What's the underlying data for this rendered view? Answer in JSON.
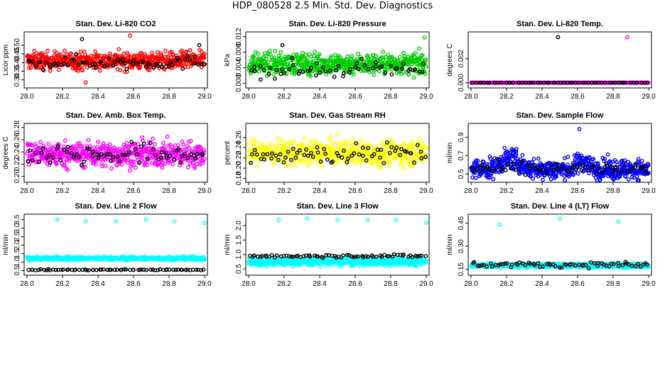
{
  "page": {
    "title": "HDP_080528  2.5 Min. Std. Dev. Diagnostics"
  },
  "colors": {
    "black": "#000000",
    "red": "#ff0000",
    "green": "#00cd00",
    "magenta": "#ff00ff",
    "yellow": "#ffff00",
    "blue": "#0000ff",
    "cyan": "#00ffff"
  },
  "chart_data": [
    {
      "type": "scatter",
      "title": "Stan. Dev. Li-820 CO2",
      "ylabel": "Licor ppm",
      "xlabel": "",
      "xlim": [
        28.0,
        29.0
      ],
      "ylim": [
        0.27,
        0.56
      ],
      "xticks": [
        "28.0",
        "28.2",
        "28.4",
        "28.6",
        "28.8",
        "29.0"
      ],
      "yticks": [
        "0.30",
        "0.35",
        "0.40",
        "0.45",
        "0.50"
      ],
      "series": [
        {
          "color": "#ff0000",
          "approx_points": 560,
          "typical_range": [
            0.32,
            0.5
          ],
          "mean": 0.41
        },
        {
          "color": "#000000",
          "approx_points": 70,
          "typical_range": [
            0.33,
            0.47
          ],
          "mean": 0.4
        }
      ],
      "outliers": [
        {
          "x": 28.31,
          "y": 0.535,
          "color": "#000000"
        },
        {
          "x": 28.58,
          "y": 0.555,
          "color": "#ff0000"
        },
        {
          "x": 28.33,
          "y": 0.285,
          "color": "#ff0000"
        },
        {
          "x": 28.97,
          "y": 0.5,
          "color": "#000000"
        }
      ]
    },
    {
      "type": "scatter",
      "title": "Stan. Dev. Li-820 Pressure",
      "ylabel": "kPa",
      "xlabel": "",
      "xlim": [
        28.0,
        29.0
      ],
      "ylim": [
        -0.0005,
        0.0125
      ],
      "xticks": [
        "28.0",
        "28.2",
        "28.4",
        "28.6",
        "28.8",
        "29.0"
      ],
      "yticks": [
        "0.000",
        "0.004",
        "0.008",
        "0.012"
      ],
      "series": [
        {
          "color": "#00cd00",
          "approx_points": 560,
          "typical_range": [
            0.0008,
            0.0105
          ],
          "mean": 0.005
        },
        {
          "color": "#000000",
          "approx_points": 60,
          "typical_range": [
            0.0002,
            0.008
          ],
          "mean": 0.0035
        }
      ],
      "outliers": [
        {
          "x": 28.99,
          "y": 0.0118,
          "color": "#00cd00"
        },
        {
          "x": 28.19,
          "y": 0.0098,
          "color": "#000000"
        }
      ]
    },
    {
      "type": "scatter",
      "title": "Stan. Dev. Li-820 Temp.",
      "ylabel": "degrees C",
      "xlabel": "",
      "xlim": [
        28.0,
        29.0
      ],
      "ylim": [
        -0.0002,
        0.004
      ],
      "xticks": [
        "28.0",
        "28.2",
        "28.4",
        "28.6",
        "28.8",
        "29.0"
      ],
      "yticks": [
        "0.000",
        "0.002"
      ],
      "series": [
        {
          "color": "#ff00ff",
          "approx_points": 400,
          "typical_range": [
            0.0,
            0.0
          ],
          "mean": 0.0
        },
        {
          "color": "#000000",
          "approx_points": 60,
          "typical_range": [
            0.0,
            0.0
          ],
          "mean": 0.0
        }
      ],
      "outliers": [
        {
          "x": 28.49,
          "y": 0.0038,
          "color": "#000000"
        },
        {
          "x": 28.88,
          "y": 0.0038,
          "color": "#ff00ff"
        }
      ]
    },
    {
      "type": "scatter",
      "title": "Stan. Dev. Amb. Box Temp.",
      "ylabel": "degrees C",
      "xlabel": "",
      "xlim": [
        28.0,
        29.0
      ],
      "ylim": [
        0.195,
        0.282
      ],
      "xticks": [
        "28.0",
        "28.2",
        "28.4",
        "28.6",
        "28.8",
        "29.0"
      ],
      "yticks": [
        "0.20",
        "0.22",
        "0.24",
        "0.26",
        "0.28"
      ],
      "series": [
        {
          "color": "#ff00ff",
          "approx_points": 560,
          "typical_range": [
            0.202,
            0.275
          ],
          "mean": 0.236
        },
        {
          "color": "#000000",
          "approx_points": 70,
          "typical_range": [
            0.205,
            0.27
          ],
          "mean": 0.236
        }
      ],
      "outliers": []
    },
    {
      "type": "scatter",
      "title": "Stan. Dev. Gas Stream RH",
      "ylabel": "percent",
      "xlabel": "",
      "xlim": [
        28.0,
        29.0
      ],
      "ylim": [
        0.178,
        0.282
      ],
      "xticks": [
        "28.0",
        "28.2",
        "28.4",
        "28.6",
        "28.8",
        "29.0"
      ],
      "yticks": [
        "0.18",
        "0.20",
        "0.22",
        "0.24",
        "0.26"
      ],
      "series": [
        {
          "color": "#ffff00",
          "approx_points": 560,
          "typical_range": [
            0.19,
            0.275
          ],
          "mean": 0.23
        },
        {
          "color": "#000000",
          "approx_points": 70,
          "typical_range": [
            0.19,
            0.265
          ],
          "mean": 0.228
        }
      ],
      "outliers": []
    },
    {
      "type": "scatter",
      "title": "Stan. Dev. Sample Flow",
      "ylabel": "ml/min",
      "xlabel": "",
      "xlim": [
        28.0,
        29.0
      ],
      "ylim": [
        0.44,
        1.02
      ],
      "xticks": [
        "28.0",
        "28.2",
        "28.4",
        "28.6",
        "28.8",
        "29.0"
      ],
      "yticks": [
        "0.5",
        "0.7",
        "0.9"
      ],
      "series": [
        {
          "color": "#0000ff",
          "approx_points": 600,
          "typical_range": [
            0.45,
            0.85
          ],
          "mean": 0.55
        },
        {
          "color": "#000000",
          "approx_points": 70,
          "typical_range": [
            0.45,
            0.7
          ],
          "mean": 0.55
        }
      ],
      "outliers": [
        {
          "x": 28.61,
          "y": 0.99,
          "color": "#0000ff"
        }
      ]
    },
    {
      "type": "scatter",
      "title": "Stan. Dev. Line 2 Flow",
      "ylabel": "ml/min",
      "xlabel": "",
      "xlim": [
        28.0,
        29.0
      ],
      "ylim": [
        0.4,
        3.65
      ],
      "xticks": [
        "28.0",
        "28.2",
        "28.4",
        "28.6",
        "28.8",
        "29.0"
      ],
      "yticks": [
        "0.5",
        "1.0",
        "1.5",
        "2.0",
        "2.5",
        "3.0",
        "3.5"
      ],
      "series": [
        {
          "color": "#00ffff",
          "approx_points": 600,
          "typical_range": [
            1.05,
            1.4
          ],
          "mean": 1.22
        },
        {
          "color": "#000000",
          "approx_points": 70,
          "typical_range": [
            0.5,
            0.6
          ],
          "mean": 0.55
        }
      ],
      "outliers": [
        {
          "x": 28.17,
          "y": 3.5,
          "color": "#00ffff"
        },
        {
          "x": 28.33,
          "y": 3.4,
          "color": "#00ffff"
        },
        {
          "x": 28.5,
          "y": 3.4,
          "color": "#00ffff"
        },
        {
          "x": 28.67,
          "y": 3.5,
          "color": "#00ffff"
        },
        {
          "x": 28.83,
          "y": 3.4,
          "color": "#00ffff"
        },
        {
          "x": 29.0,
          "y": 3.3,
          "color": "#00ffff"
        }
      ]
    },
    {
      "type": "scatter",
      "title": "Stan. Dev. Line 3 Flow",
      "ylabel": "ml/min",
      "xlabel": "",
      "xlim": [
        28.0,
        29.0
      ],
      "ylim": [
        0.38,
        2.3
      ],
      "xticks": [
        "28.0",
        "28.2",
        "28.4",
        "28.6",
        "28.8",
        "29.0"
      ],
      "yticks": [
        "0.5",
        "1.0",
        "1.5",
        "2.0"
      ],
      "series": [
        {
          "color": "#00ffff",
          "approx_points": 600,
          "typical_range": [
            0.5,
            1.0
          ],
          "mean": 0.75
        },
        {
          "color": "#000000",
          "approx_points": 70,
          "typical_range": [
            0.85,
            1.05
          ],
          "mean": 0.95
        }
      ],
      "outliers": [
        {
          "x": 28.17,
          "y": 2.2,
          "color": "#00ffff"
        },
        {
          "x": 28.33,
          "y": 2.25,
          "color": "#00ffff"
        },
        {
          "x": 28.5,
          "y": 2.2,
          "color": "#00ffff"
        },
        {
          "x": 28.67,
          "y": 2.2,
          "color": "#00ffff"
        },
        {
          "x": 28.83,
          "y": 2.2,
          "color": "#00ffff"
        },
        {
          "x": 29.0,
          "y": 2.1,
          "color": "#00ffff"
        }
      ]
    },
    {
      "type": "scatter",
      "title": "Stan. Dev. Line 4 (LT) Flow",
      "ylabel": "ml/min",
      "xlabel": "",
      "xlim": [
        28.0,
        29.0
      ],
      "ylim": [
        0.13,
        0.49
      ],
      "xticks": [
        "28.0",
        "28.2",
        "28.4",
        "28.6",
        "28.8",
        "29.0"
      ],
      "yticks": [
        "0.15",
        "0.30",
        "0.45"
      ],
      "series": [
        {
          "color": "#00ffff",
          "approx_points": 600,
          "typical_range": [
            0.15,
            0.2
          ],
          "mean": 0.175
        },
        {
          "color": "#000000",
          "approx_points": 70,
          "typical_range": [
            0.15,
            0.21
          ],
          "mean": 0.18
        }
      ],
      "outliers": [
        {
          "x": 28.16,
          "y": 0.44,
          "color": "#00ffff"
        },
        {
          "x": 28.5,
          "y": 0.48,
          "color": "#00ffff"
        },
        {
          "x": 28.83,
          "y": 0.46,
          "color": "#00ffff"
        }
      ]
    }
  ]
}
